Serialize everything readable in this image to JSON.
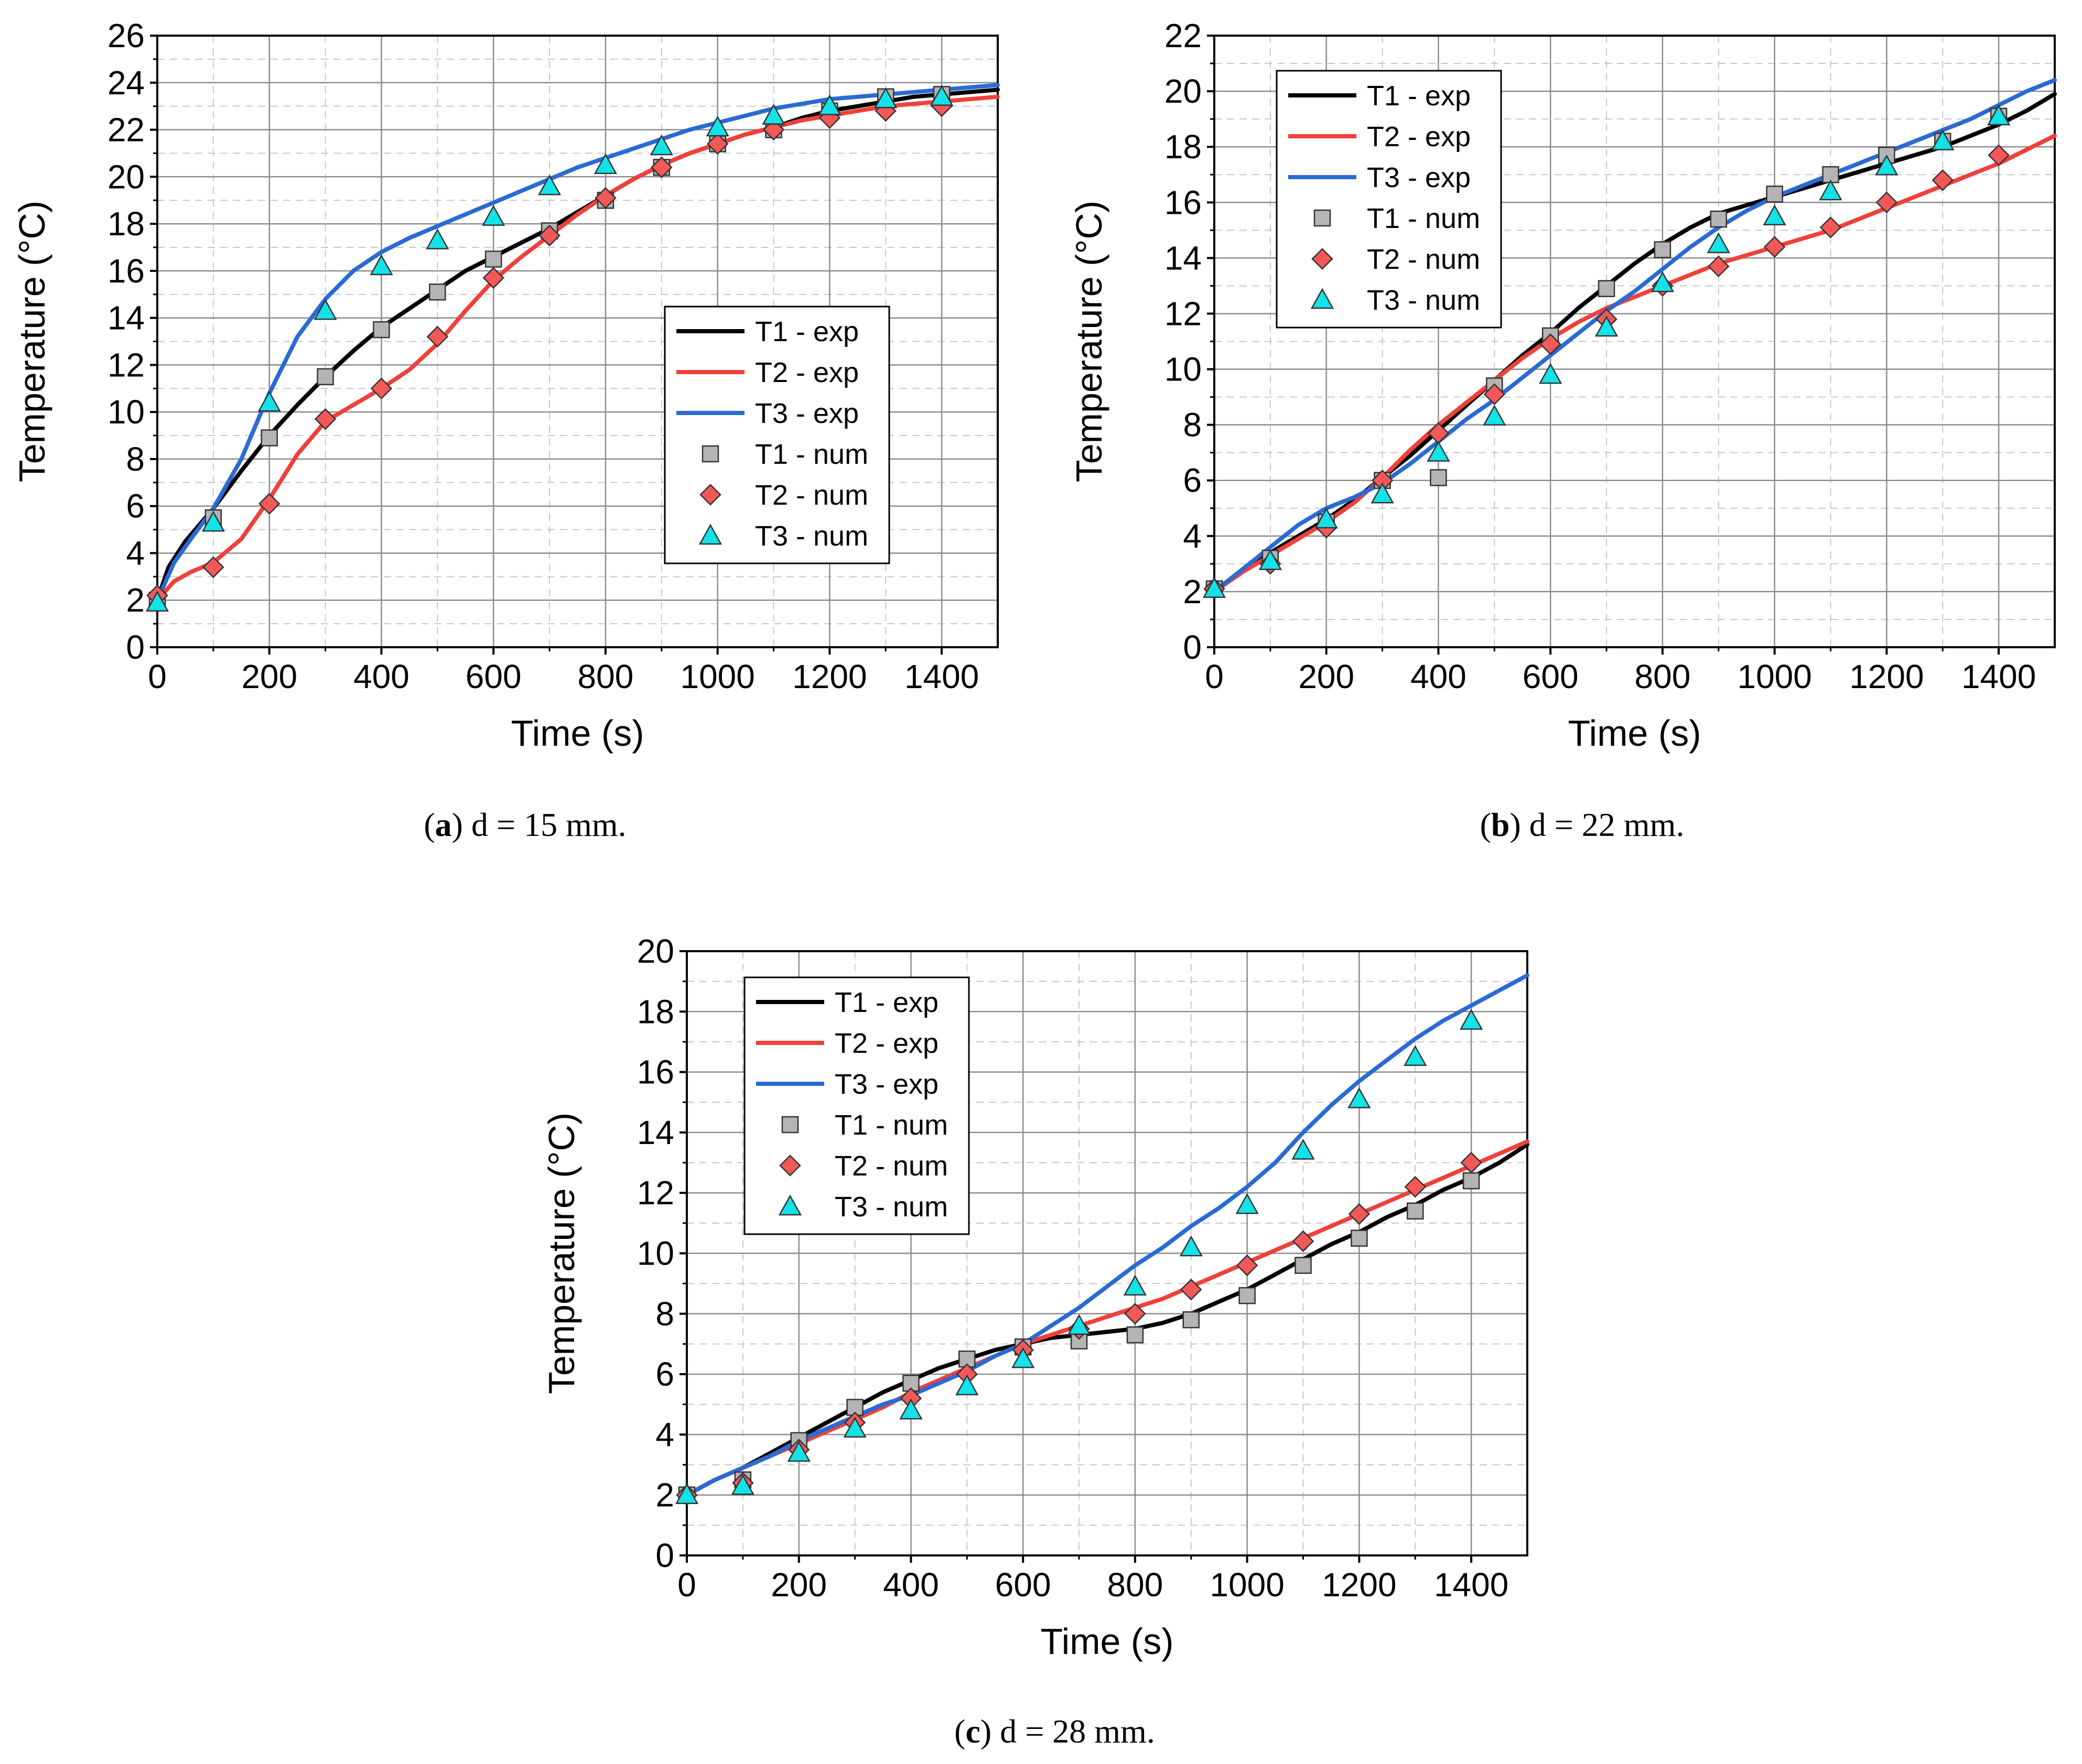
{
  "colors": {
    "T1": "#000000",
    "T2": "#f0403a",
    "T3": "#2a6ad4",
    "T1_marker": "#b4b4b4",
    "T2_marker": "#f25858",
    "T3_marker": "#13e2e8",
    "grid_major": "#8c8c8c",
    "grid_minor": "#c8c8c8"
  },
  "chart_data": [
    {
      "type": "line",
      "panel": "a",
      "caption_letter": "a",
      "caption_text": "d = 15 mm.",
      "xlabel": "Time (s)",
      "ylabel": "Temperature (°C)",
      "xlim": [
        0,
        1500
      ],
      "ylim": [
        0,
        26
      ],
      "xticks": [
        0,
        200,
        400,
        600,
        800,
        1000,
        1200,
        1400
      ],
      "yticks": [
        0,
        2,
        4,
        6,
        8,
        10,
        12,
        14,
        16,
        18,
        20,
        22,
        24,
        26
      ],
      "legend_position": "center-right",
      "series": [
        {
          "name": "T1 - exp",
          "kind": "line",
          "color_key": "T1",
          "x": [
            0,
            20,
            50,
            100,
            150,
            200,
            250,
            300,
            350,
            400,
            450,
            500,
            550,
            600,
            650,
            700,
            750,
            800,
            850,
            900,
            950,
            1000,
            1050,
            1100,
            1150,
            1200,
            1250,
            1300,
            1350,
            1400,
            1450,
            1500
          ],
          "y": [
            2.0,
            3.4,
            4.5,
            5.9,
            7.5,
            9.0,
            10.3,
            11.5,
            12.6,
            13.6,
            14.4,
            15.2,
            16.0,
            16.6,
            17.2,
            17.8,
            18.5,
            19.2,
            19.9,
            20.5,
            21.0,
            21.4,
            21.8,
            22.1,
            22.5,
            22.8,
            23.0,
            23.2,
            23.4,
            23.5,
            23.6,
            23.7
          ]
        },
        {
          "name": "T2 - exp",
          "kind": "line",
          "color_key": "T2",
          "x": [
            0,
            30,
            60,
            100,
            150,
            200,
            250,
            300,
            350,
            400,
            450,
            500,
            550,
            600,
            650,
            700,
            750,
            800,
            850,
            900,
            950,
            1000,
            1050,
            1100,
            1150,
            1200,
            1250,
            1300,
            1350,
            1400,
            1450,
            1500
          ],
          "y": [
            2.0,
            2.8,
            3.2,
            3.6,
            4.6,
            6.3,
            8.2,
            9.6,
            10.3,
            11.0,
            11.8,
            12.9,
            14.3,
            15.6,
            16.6,
            17.5,
            18.4,
            19.2,
            19.9,
            20.5,
            21.0,
            21.4,
            21.8,
            22.1,
            22.4,
            22.6,
            22.8,
            23.0,
            23.1,
            23.2,
            23.3,
            23.4
          ]
        },
        {
          "name": "T3 - exp",
          "kind": "line",
          "color_key": "T3",
          "x": [
            0,
            30,
            60,
            100,
            150,
            200,
            250,
            300,
            350,
            400,
            450,
            500,
            550,
            600,
            650,
            700,
            750,
            800,
            850,
            900,
            950,
            1000,
            1050,
            1100,
            1150,
            1200,
            1250,
            1300,
            1350,
            1400,
            1450,
            1500
          ],
          "y": [
            2.0,
            3.6,
            4.6,
            5.9,
            8.0,
            10.8,
            13.2,
            14.8,
            16.0,
            16.8,
            17.4,
            17.9,
            18.4,
            18.9,
            19.4,
            19.9,
            20.4,
            20.8,
            21.2,
            21.6,
            22.0,
            22.3,
            22.6,
            22.9,
            23.1,
            23.3,
            23.4,
            23.5,
            23.6,
            23.7,
            23.8,
            23.9
          ]
        },
        {
          "name": "T1 - num",
          "kind": "marker",
          "marker": "square",
          "color_key": "T1_marker",
          "x": [
            0,
            100,
            200,
            300,
            400,
            500,
            600,
            700,
            800,
            900,
            1000,
            1100,
            1200,
            1300,
            1400
          ],
          "y": [
            2.0,
            5.5,
            8.9,
            11.5,
            13.5,
            15.1,
            16.5,
            17.7,
            19.0,
            20.4,
            21.4,
            22.0,
            22.8,
            23.4,
            23.5
          ]
        },
        {
          "name": "T2 - num",
          "kind": "marker",
          "marker": "diamond",
          "color_key": "T2_marker",
          "x": [
            0,
            100,
            200,
            300,
            400,
            500,
            600,
            700,
            800,
            900,
            1000,
            1100,
            1200,
            1300,
            1400
          ],
          "y": [
            2.2,
            3.4,
            6.1,
            9.7,
            11.0,
            13.2,
            15.7,
            17.5,
            19.1,
            20.4,
            21.4,
            22.0,
            22.5,
            22.8,
            23.0
          ]
        },
        {
          "name": "T3 - num",
          "kind": "marker",
          "marker": "triangle",
          "color_key": "T3_marker",
          "x": [
            0,
            100,
            200,
            300,
            400,
            500,
            600,
            700,
            800,
            900,
            1000,
            1100,
            1200,
            1300,
            1400
          ],
          "y": [
            1.9,
            5.3,
            10.4,
            14.3,
            16.2,
            17.3,
            18.3,
            19.6,
            20.5,
            21.3,
            22.1,
            22.6,
            23.0,
            23.3,
            23.4
          ]
        }
      ]
    },
    {
      "type": "line",
      "panel": "b",
      "caption_letter": "b",
      "caption_text": "d = 22 mm.",
      "xlabel": "Time (s)",
      "ylabel": "Temperature (°C)",
      "xlim": [
        0,
        1500
      ],
      "ylim": [
        0,
        22
      ],
      "xticks": [
        0,
        200,
        400,
        600,
        800,
        1000,
        1200,
        1400
      ],
      "yticks": [
        0,
        2,
        4,
        6,
        8,
        10,
        12,
        14,
        16,
        18,
        20,
        22
      ],
      "legend_position": "top-left",
      "series": [
        {
          "name": "T1 - exp",
          "kind": "line",
          "color_key": "T1",
          "x": [
            0,
            50,
            100,
            150,
            200,
            250,
            300,
            350,
            400,
            450,
            500,
            550,
            600,
            650,
            700,
            750,
            800,
            850,
            900,
            950,
            1000,
            1050,
            1100,
            1150,
            1200,
            1250,
            1300,
            1350,
            1400,
            1450,
            1500
          ],
          "y": [
            2.0,
            2.7,
            3.4,
            4.0,
            4.6,
            5.3,
            6.1,
            6.9,
            7.8,
            8.7,
            9.6,
            10.5,
            11.3,
            12.2,
            13.0,
            13.8,
            14.5,
            15.1,
            15.6,
            15.9,
            16.2,
            16.5,
            16.8,
            17.1,
            17.4,
            17.7,
            18.0,
            18.4,
            18.8,
            19.3,
            19.9
          ]
        },
        {
          "name": "T2 - exp",
          "kind": "line",
          "color_key": "T2",
          "x": [
            0,
            50,
            100,
            150,
            200,
            250,
            300,
            350,
            400,
            450,
            500,
            550,
            600,
            650,
            700,
            750,
            800,
            850,
            900,
            950,
            1000,
            1050,
            1100,
            1150,
            1200,
            1250,
            1300,
            1350,
            1400,
            1450,
            1500
          ],
          "y": [
            2.0,
            2.7,
            3.3,
            3.9,
            4.5,
            5.2,
            6.1,
            7.1,
            8.0,
            8.8,
            9.6,
            10.4,
            11.1,
            11.7,
            12.2,
            12.6,
            13.0,
            13.4,
            13.8,
            14.1,
            14.4,
            14.7,
            15.0,
            15.4,
            15.8,
            16.2,
            16.6,
            17.0,
            17.4,
            17.9,
            18.4
          ]
        },
        {
          "name": "T3 - exp",
          "kind": "line",
          "color_key": "T3",
          "x": [
            0,
            50,
            100,
            150,
            200,
            250,
            300,
            350,
            400,
            450,
            500,
            550,
            600,
            650,
            700,
            750,
            800,
            850,
            900,
            950,
            1000,
            1050,
            1100,
            1150,
            1200,
            1250,
            1300,
            1350,
            1400,
            1450,
            1500
          ],
          "y": [
            2.0,
            2.8,
            3.6,
            4.4,
            5.0,
            5.4,
            5.9,
            6.6,
            7.4,
            8.2,
            8.9,
            9.7,
            10.5,
            11.3,
            12.1,
            12.8,
            13.6,
            14.4,
            15.1,
            15.7,
            16.2,
            16.6,
            17.0,
            17.4,
            17.8,
            18.2,
            18.6,
            19.0,
            19.5,
            20.0,
            20.4
          ]
        },
        {
          "name": "T1 - num",
          "kind": "marker",
          "marker": "square",
          "color_key": "T1_marker",
          "x": [
            0,
            100,
            200,
            300,
            400,
            500,
            600,
            700,
            800,
            900,
            1000,
            1100,
            1200,
            1300,
            1400
          ],
          "y": [
            2.1,
            3.2,
            4.5,
            6.0,
            6.1,
            9.4,
            11.2,
            12.9,
            14.3,
            15.4,
            16.3,
            17.0,
            17.7,
            18.2,
            19.1
          ]
        },
        {
          "name": "T2 - num",
          "kind": "marker",
          "marker": "diamond",
          "color_key": "T2_marker",
          "x": [
            0,
            100,
            200,
            300,
            400,
            500,
            600,
            700,
            800,
            900,
            1000,
            1100,
            1200,
            1300,
            1400
          ],
          "y": [
            2.1,
            3.0,
            4.3,
            6.0,
            7.7,
            9.1,
            10.9,
            11.8,
            13.0,
            13.7,
            14.4,
            15.1,
            16.0,
            16.8,
            17.7
          ]
        },
        {
          "name": "T3 - num",
          "kind": "marker",
          "marker": "triangle",
          "color_key": "T3_marker",
          "x": [
            0,
            100,
            200,
            300,
            400,
            500,
            600,
            700,
            800,
            900,
            1000,
            1100,
            1200,
            1300,
            1400
          ],
          "y": [
            2.1,
            3.1,
            4.6,
            5.5,
            7.0,
            8.3,
            9.8,
            11.5,
            13.1,
            14.5,
            15.5,
            16.4,
            17.3,
            18.2,
            19.1
          ]
        }
      ]
    },
    {
      "type": "line",
      "panel": "c",
      "caption_letter": "c",
      "caption_text": "d = 28 mm.",
      "xlabel": "Time (s)",
      "ylabel": "Temperature (°C)",
      "xlim": [
        0,
        1500
      ],
      "ylim": [
        0,
        20
      ],
      "xticks": [
        0,
        200,
        400,
        600,
        800,
        1000,
        1200,
        1400
      ],
      "yticks": [
        0,
        2,
        4,
        6,
        8,
        10,
        12,
        14,
        16,
        18,
        20
      ],
      "legend_position": "top-left",
      "series": [
        {
          "name": "T1 - exp",
          "kind": "line",
          "color_key": "T1",
          "x": [
            0,
            50,
            100,
            150,
            200,
            250,
            300,
            350,
            400,
            450,
            500,
            550,
            600,
            650,
            700,
            750,
            800,
            850,
            900,
            950,
            1000,
            1050,
            1100,
            1150,
            1200,
            1250,
            1300,
            1350,
            1400,
            1450,
            1500
          ],
          "y": [
            2.0,
            2.5,
            2.9,
            3.4,
            3.9,
            4.4,
            4.9,
            5.4,
            5.8,
            6.2,
            6.5,
            6.8,
            7.0,
            7.2,
            7.3,
            7.4,
            7.5,
            7.7,
            8.0,
            8.4,
            8.8,
            9.3,
            9.8,
            10.3,
            10.7,
            11.2,
            11.6,
            12.1,
            12.5,
            13.0,
            13.6
          ]
        },
        {
          "name": "T2 - exp",
          "kind": "line",
          "color_key": "T2",
          "x": [
            0,
            50,
            100,
            150,
            200,
            250,
            300,
            350,
            400,
            450,
            500,
            550,
            600,
            650,
            700,
            750,
            800,
            850,
            900,
            950,
            1000,
            1050,
            1100,
            1150,
            1200,
            1250,
            1300,
            1350,
            1400,
            1450,
            1500
          ],
          "y": [
            2.0,
            2.5,
            2.9,
            3.3,
            3.7,
            4.1,
            4.5,
            4.9,
            5.4,
            5.8,
            6.2,
            6.6,
            7.0,
            7.3,
            7.6,
            7.9,
            8.2,
            8.5,
            8.9,
            9.3,
            9.7,
            10.1,
            10.5,
            10.9,
            11.3,
            11.7,
            12.1,
            12.5,
            12.9,
            13.3,
            13.7
          ]
        },
        {
          "name": "T3 - exp",
          "kind": "line",
          "color_key": "T3",
          "x": [
            0,
            50,
            100,
            150,
            200,
            250,
            300,
            350,
            400,
            450,
            500,
            550,
            600,
            650,
            700,
            750,
            800,
            850,
            900,
            950,
            1000,
            1050,
            1100,
            1150,
            1200,
            1250,
            1300,
            1350,
            1400,
            1450,
            1500
          ],
          "y": [
            2.0,
            2.5,
            2.9,
            3.3,
            3.8,
            4.2,
            4.6,
            5.0,
            5.3,
            5.7,
            6.1,
            6.6,
            7.0,
            7.6,
            8.2,
            8.9,
            9.6,
            10.2,
            10.9,
            11.5,
            12.2,
            13.0,
            14.0,
            14.9,
            15.7,
            16.4,
            17.1,
            17.7,
            18.2,
            18.7,
            19.2
          ]
        },
        {
          "name": "T1 - num",
          "kind": "marker",
          "marker": "square",
          "color_key": "T1_marker",
          "x": [
            0,
            100,
            200,
            300,
            400,
            500,
            600,
            700,
            800,
            900,
            1000,
            1100,
            1200,
            1300,
            1400
          ],
          "y": [
            2.0,
            2.5,
            3.8,
            4.9,
            5.7,
            6.5,
            6.9,
            7.1,
            7.3,
            7.8,
            8.6,
            9.6,
            10.5,
            11.4,
            12.4
          ]
        },
        {
          "name": "T2 - num",
          "kind": "marker",
          "marker": "diamond",
          "color_key": "T2_marker",
          "x": [
            0,
            100,
            200,
            300,
            400,
            500,
            600,
            700,
            800,
            900,
            1000,
            1100,
            1200,
            1300,
            1400
          ],
          "y": [
            2.0,
            2.4,
            3.5,
            4.4,
            5.2,
            6.0,
            6.8,
            7.5,
            8.0,
            8.8,
            9.6,
            10.4,
            11.3,
            12.2,
            13.0
          ]
        },
        {
          "name": "T3 - num",
          "kind": "marker",
          "marker": "triangle",
          "color_key": "T3_marker",
          "x": [
            0,
            100,
            200,
            300,
            400,
            500,
            600,
            700,
            800,
            900,
            1000,
            1100,
            1200,
            1300,
            1400
          ],
          "y": [
            2.0,
            2.3,
            3.4,
            4.2,
            4.8,
            5.6,
            6.5,
            7.6,
            8.9,
            10.2,
            11.6,
            13.4,
            15.1,
            16.5,
            17.7
          ]
        }
      ]
    }
  ]
}
